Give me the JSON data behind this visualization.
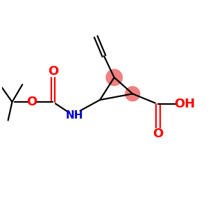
{
  "bg_color": "#ffffff",
  "bond_color": "#000000",
  "oxygen_color": "#ff0000",
  "nitrogen_color": "#0000cc",
  "highlight_color": "#f08080",
  "lw": 1.6,
  "fig_size": [
    3.0,
    3.0
  ],
  "dpi": 100,
  "xlim": [
    0,
    10
  ],
  "ylim": [
    0,
    10
  ]
}
